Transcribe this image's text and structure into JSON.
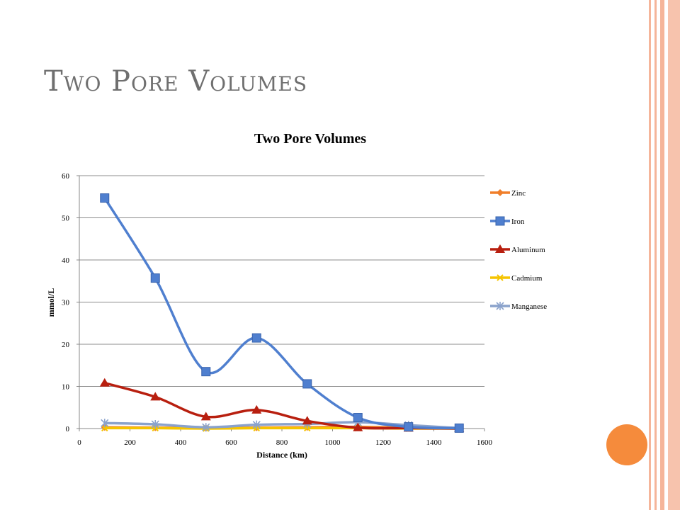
{
  "slide": {
    "title": "Two Pore Volumes"
  },
  "theme": {
    "title_color": "#6f6f6f",
    "stripe_color": "#f5b59a",
    "circle_color": "#f58b3c"
  },
  "chart_data": {
    "type": "line",
    "title": "Two Pore Volumes",
    "xlabel": "Distance (km)",
    "ylabel": "mmol/L",
    "xlim": [
      0,
      1600
    ],
    "ylim": [
      0,
      60
    ],
    "x_ticks": [
      0,
      200,
      400,
      600,
      800,
      1000,
      1200,
      1400,
      1600
    ],
    "y_ticks": [
      0,
      10,
      20,
      30,
      40,
      50,
      60
    ],
    "grid": "horizontal",
    "legend_position": "right",
    "smooth": true,
    "x": [
      100,
      300,
      500,
      700,
      900,
      1100,
      1300,
      1500
    ],
    "series": [
      {
        "name": "Zinc",
        "color": "#f07f2a",
        "marker": "diamond",
        "values": [
          0.3,
          0.2,
          0.1,
          0.2,
          0.3,
          0.4,
          0.2,
          0.1
        ]
      },
      {
        "name": "Iron",
        "color": "#4f7fcf",
        "marker": "square",
        "values": [
          54.7,
          35.7,
          13.5,
          21.5,
          10.6,
          2.6,
          0.4,
          0.1
        ]
      },
      {
        "name": "Aluminum",
        "color": "#b81f0f",
        "marker": "triangle",
        "values": [
          10.8,
          7.5,
          2.8,
          4.4,
          1.8,
          0.2,
          0.1,
          0.0
        ]
      },
      {
        "name": "Cadmium",
        "color": "#f5c400",
        "marker": "x",
        "values": [
          0.1,
          0.1,
          0.0,
          0.1,
          0.1,
          0.1,
          0.0,
          0.0
        ]
      },
      {
        "name": "Manganese",
        "color": "#8aa2cc",
        "marker": "star",
        "values": [
          1.3,
          1.0,
          0.3,
          0.9,
          1.1,
          1.5,
          0.8,
          0.1
        ]
      }
    ]
  }
}
